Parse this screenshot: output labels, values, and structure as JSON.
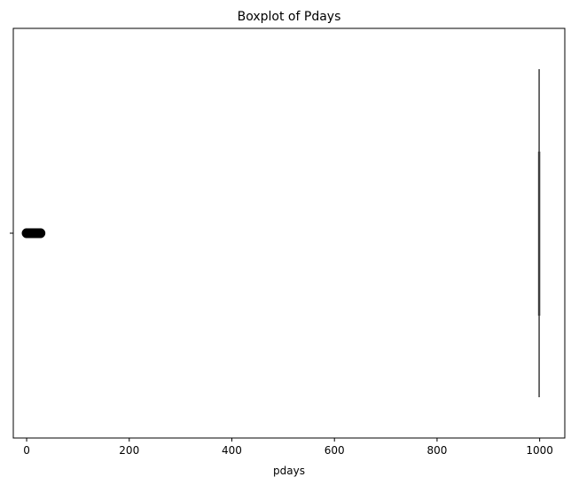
{
  "chart_data": {
    "type": "boxplot",
    "title": "Boxplot of Pdays",
    "xlabel": "pdays",
    "ylabel": "",
    "xlim": [
      -26,
      1049
    ],
    "xticks": [
      0,
      200,
      400,
      600,
      800,
      1000
    ],
    "xtick_labels": [
      "0",
      "200",
      "400",
      "600",
      "800",
      "1000"
    ],
    "orientation": "horizontal",
    "box": {
      "q1": 999,
      "median": 999,
      "q3": 999,
      "whisker_low": 999,
      "whisker_high": 999
    },
    "outliers": [
      0,
      1,
      2,
      3,
      4,
      5,
      6,
      7,
      8,
      9,
      10,
      11,
      12,
      13,
      14,
      15,
      16,
      17,
      18,
      19,
      20,
      21,
      22,
      25,
      26,
      27
    ],
    "colors": {
      "box_line": "#3d3d3d",
      "outlier_fill": "#000000",
      "axis": "#000000"
    }
  }
}
